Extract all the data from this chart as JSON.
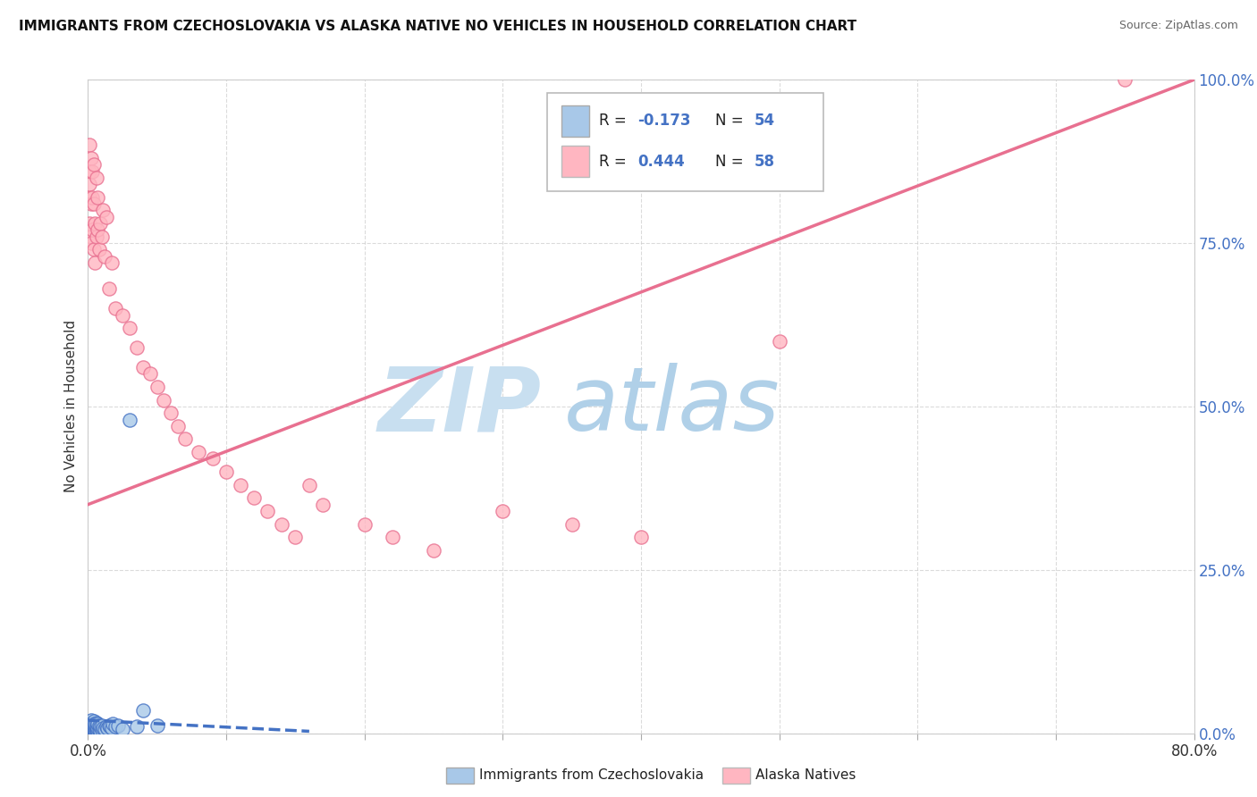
{
  "title": "IMMIGRANTS FROM CZECHOSLOVAKIA VS ALASKA NATIVE NO VEHICLES IN HOUSEHOLD CORRELATION CHART",
  "source": "Source: ZipAtlas.com",
  "ylabel": "No Vehicles in Household",
  "legend_label1": "Immigrants from Czechoslovakia",
  "legend_label2": "Alaska Natives",
  "blue_color": "#a8c8e8",
  "blue_edge_color": "#4472c4",
  "pink_color": "#ffb6c1",
  "pink_edge_color": "#e87090",
  "blue_line_color": "#4472c4",
  "pink_line_color": "#e87090",
  "watermark_zip_color": "#c8dff0",
  "watermark_atlas_color": "#b0d0e8",
  "background_color": "#ffffff",
  "xlim": [
    0.0,
    0.8
  ],
  "ylim": [
    0.0,
    1.0
  ],
  "xtick_positions": [
    0.0,
    0.1,
    0.2,
    0.3,
    0.4,
    0.5,
    0.6,
    0.7,
    0.8
  ],
  "ytick_positions": [
    0.0,
    0.25,
    0.5,
    0.75,
    1.0
  ],
  "blue_scatter_x": [
    0.001,
    0.001,
    0.001,
    0.001,
    0.001,
    0.002,
    0.002,
    0.002,
    0.002,
    0.002,
    0.002,
    0.003,
    0.003,
    0.003,
    0.003,
    0.003,
    0.004,
    0.004,
    0.004,
    0.004,
    0.004,
    0.005,
    0.005,
    0.005,
    0.005,
    0.005,
    0.006,
    0.006,
    0.006,
    0.006,
    0.007,
    0.007,
    0.007,
    0.008,
    0.008,
    0.009,
    0.009,
    0.01,
    0.01,
    0.011,
    0.012,
    0.013,
    0.014,
    0.015,
    0.016,
    0.017,
    0.018,
    0.02,
    0.022,
    0.025,
    0.03,
    0.035,
    0.04,
    0.05
  ],
  "blue_scatter_y": [
    0.005,
    0.005,
    0.008,
    0.01,
    0.015,
    0.003,
    0.005,
    0.008,
    0.01,
    0.012,
    0.02,
    0.002,
    0.005,
    0.007,
    0.01,
    0.015,
    0.003,
    0.005,
    0.008,
    0.012,
    0.018,
    0.002,
    0.004,
    0.007,
    0.01,
    0.015,
    0.003,
    0.006,
    0.01,
    0.016,
    0.004,
    0.008,
    0.015,
    0.005,
    0.012,
    0.004,
    0.01,
    0.005,
    0.012,
    0.008,
    0.007,
    0.01,
    0.008,
    0.012,
    0.01,
    0.008,
    0.015,
    0.01,
    0.012,
    0.007,
    0.48,
    0.01,
    0.035,
    0.012
  ],
  "pink_scatter_x": [
    0.001,
    0.001,
    0.001,
    0.001,
    0.001,
    0.002,
    0.002,
    0.002,
    0.002,
    0.003,
    0.003,
    0.003,
    0.004,
    0.004,
    0.004,
    0.005,
    0.005,
    0.006,
    0.006,
    0.007,
    0.007,
    0.008,
    0.009,
    0.01,
    0.011,
    0.012,
    0.013,
    0.015,
    0.017,
    0.02,
    0.025,
    0.03,
    0.035,
    0.04,
    0.045,
    0.05,
    0.055,
    0.06,
    0.065,
    0.07,
    0.08,
    0.09,
    0.1,
    0.11,
    0.12,
    0.13,
    0.14,
    0.15,
    0.16,
    0.17,
    0.2,
    0.22,
    0.25,
    0.3,
    0.35,
    0.4,
    0.5,
    0.75
  ],
  "pink_scatter_y": [
    0.78,
    0.82,
    0.86,
    0.9,
    0.84,
    0.76,
    0.81,
    0.75,
    0.88,
    0.77,
    0.82,
    0.86,
    0.74,
    0.81,
    0.87,
    0.72,
    0.78,
    0.76,
    0.85,
    0.77,
    0.82,
    0.74,
    0.78,
    0.76,
    0.8,
    0.73,
    0.79,
    0.68,
    0.72,
    0.65,
    0.64,
    0.62,
    0.59,
    0.56,
    0.55,
    0.53,
    0.51,
    0.49,
    0.47,
    0.45,
    0.43,
    0.42,
    0.4,
    0.38,
    0.36,
    0.34,
    0.32,
    0.3,
    0.38,
    0.35,
    0.32,
    0.3,
    0.28,
    0.34,
    0.32,
    0.3,
    0.6,
    1.0
  ],
  "blue_trend_x": [
    0.0,
    0.16
  ],
  "blue_trend_y": [
    0.02,
    0.003
  ],
  "pink_trend_x": [
    0.0,
    0.8
  ],
  "pink_trend_y": [
    0.35,
    1.0
  ]
}
